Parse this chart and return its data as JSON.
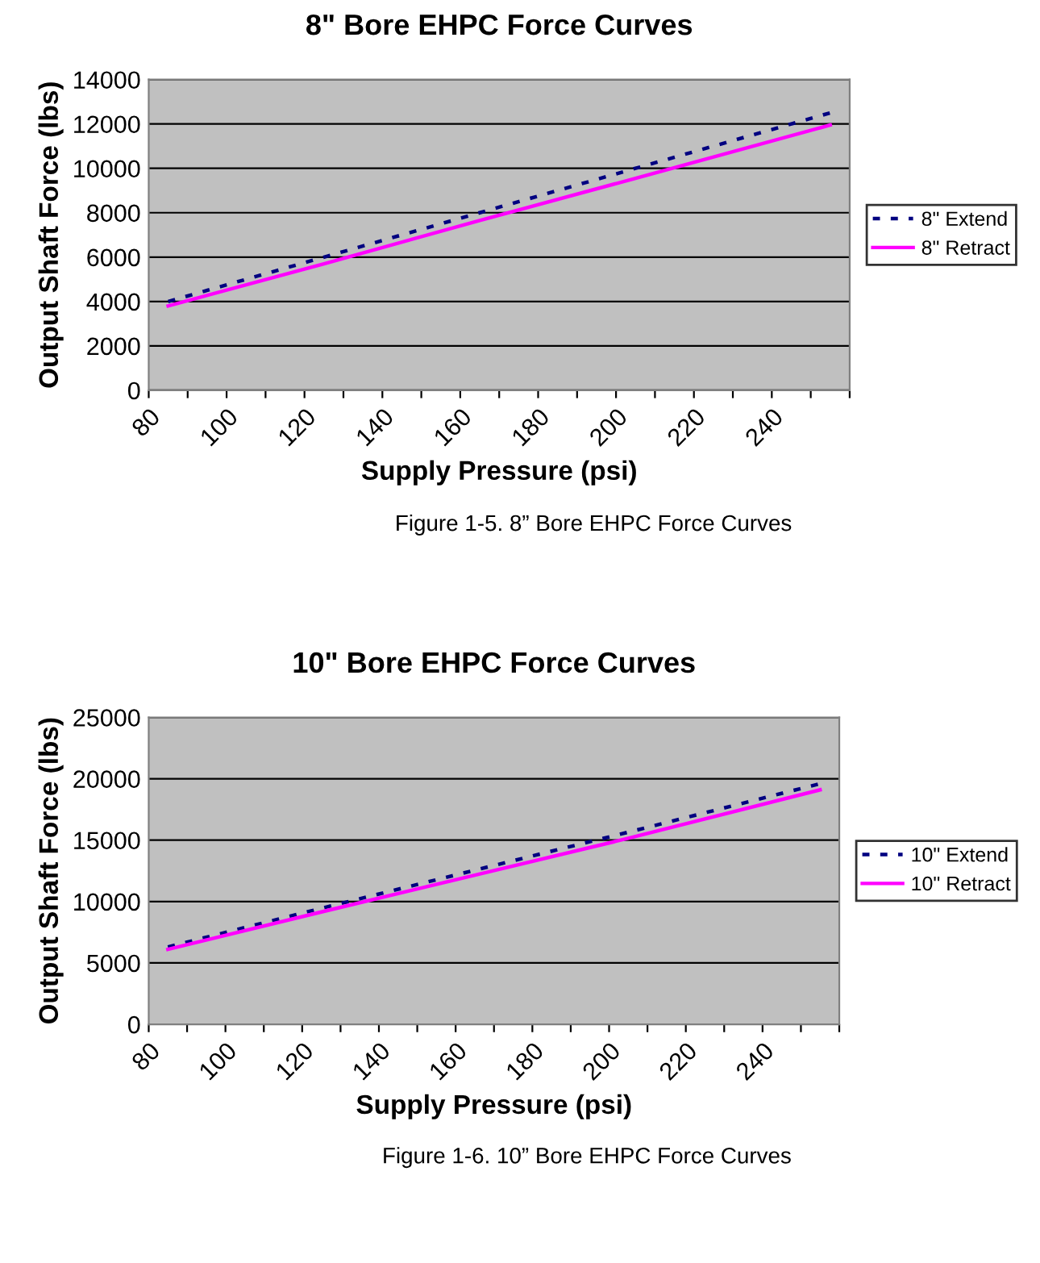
{
  "chart_data": [
    {
      "type": "line",
      "title": "8\" Bore EHPC Force Curves",
      "xlabel": "Supply Pressure (psi)",
      "ylabel": "Output Shaft Force (lbs)",
      "annotations": [
        "Figure 1-5. 8” Bore EHPC Force Curves"
      ],
      "x": [
        85,
        125,
        165,
        205,
        255
      ],
      "series": [
        {
          "name": "8\" Extend",
          "color": "#000080",
          "values": [
            4000,
            6000,
            8000,
            10000,
            12500
          ],
          "line_style": "dotted"
        },
        {
          "name": "8\" Retract",
          "color": "#ff00ff",
          "values": [
            3800,
            5700,
            7650,
            9550,
            11950
          ],
          "line_style": "solid"
        }
      ],
      "xlim": [
        80,
        260
      ],
      "xticks": [
        80,
        {
          "value": 90,
          "label": null
        },
        100,
        {
          "value": 110,
          "label": null
        },
        120,
        {
          "value": 130,
          "label": null
        },
        140,
        {
          "value": 150,
          "label": null
        },
        160,
        {
          "value": 170,
          "label": null
        },
        180,
        {
          "value": 190,
          "label": null
        },
        200,
        {
          "value": 210,
          "label": null
        },
        220,
        {
          "value": 230,
          "label": null
        },
        240,
        {
          "value": 250,
          "label": null
        },
        {
          "value": 260,
          "label": null
        }
      ],
      "ylim": [
        0,
        14000
      ],
      "yticks": [
        0,
        2000,
        4000,
        6000,
        8000,
        10000,
        12000,
        14000
      ],
      "grid": "y",
      "legend": "right",
      "marker": "none"
    },
    {
      "type": "line",
      "title": "10\" Bore EHPC Force Curves",
      "xlabel": "Supply Pressure (psi)",
      "ylabel": "Output Shaft Force (lbs)",
      "annotations": [
        "Figure 1-6. 10” Bore EHPC Force Curves"
      ],
      "x": [
        85,
        125,
        165,
        205,
        255
      ],
      "series": [
        {
          "name": "10\" Extend",
          "color": "#000080",
          "values": [
            6300,
            9450,
            12550,
            15650,
            19600
          ],
          "line_style": "dotted"
        },
        {
          "name": "10\" Retract",
          "color": "#ff00ff",
          "values": [
            6100,
            9150,
            12150,
            15150,
            19100
          ],
          "line_style": "solid"
        }
      ],
      "xlim": [
        80,
        260
      ],
      "xticks": [
        80,
        {
          "value": 90,
          "label": null
        },
        100,
        {
          "value": 110,
          "label": null
        },
        120,
        {
          "value": 130,
          "label": null
        },
        140,
        {
          "value": 150,
          "label": null
        },
        160,
        {
          "value": 170,
          "label": null
        },
        180,
        {
          "value": 190,
          "label": null
        },
        200,
        {
          "value": 210,
          "label": null
        },
        220,
        {
          "value": 230,
          "label": null
        },
        240,
        {
          "value": 250,
          "label": null
        },
        {
          "value": 260,
          "label": null
        }
      ],
      "ylim": [
        0,
        25000
      ],
      "yticks": [
        0,
        5000,
        10000,
        15000,
        20000,
        25000
      ],
      "grid": "y",
      "legend": "right",
      "marker": "none"
    }
  ]
}
